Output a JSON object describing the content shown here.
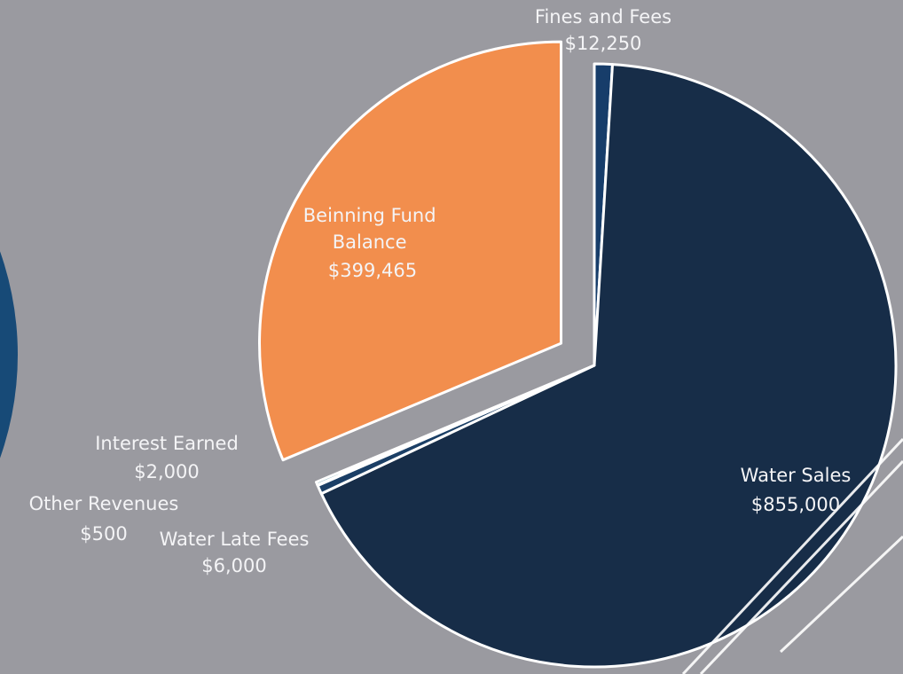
{
  "chart_data": {
    "type": "pie",
    "title": "",
    "slices": [
      {
        "label": "Fines and Fees",
        "value": 12250,
        "value_label": "$12,250",
        "color": "#173d6a",
        "exploded": false
      },
      {
        "label": "Water Sales",
        "value": 855000,
        "value_label": "$855,000",
        "color": "#172d48",
        "exploded": false
      },
      {
        "label": "Water Late Fees",
        "value": 6000,
        "value_label": "$6,000",
        "color": "#1b3f66",
        "exploded": false
      },
      {
        "label": "Other Revenues",
        "value": 500,
        "value_label": "$500",
        "color": "#1a5470",
        "exploded": false
      },
      {
        "label": "Interest Earned",
        "value": 2000,
        "value_label": "$2,000",
        "color": "#1f6e83",
        "exploded": false
      },
      {
        "label": "Beinning Fund Balance",
        "value": 399465,
        "value_label": "$399,465",
        "color": "#f28e4d",
        "exploded": true
      }
    ]
  },
  "colors": {
    "background": "#9a9aa0",
    "slice_border": "#ffffff",
    "label_text": "#f4f4f6",
    "side_pie": "#174a77"
  }
}
